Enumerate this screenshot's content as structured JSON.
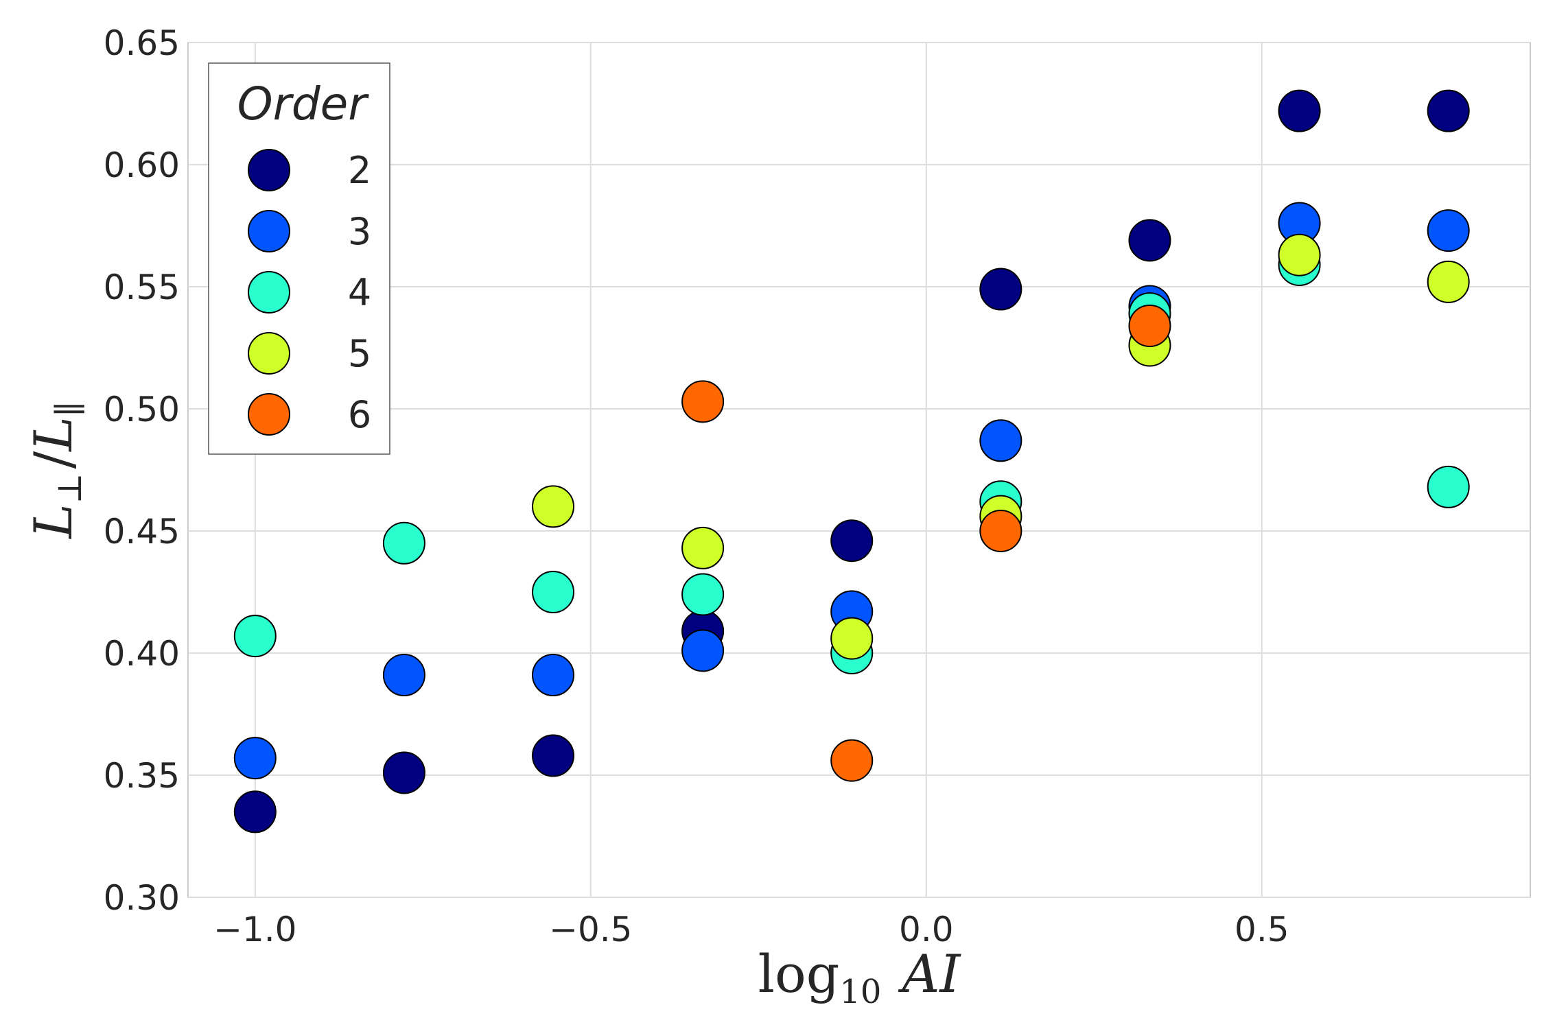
{
  "chart_data": {
    "type": "scatter",
    "xlabel": {
      "base": "log",
      "sub": "10",
      "var": "AI"
    },
    "ylabel": {
      "num": "L",
      "num_sub": "⊥",
      "sep": "/",
      "den": "L",
      "den_sub": "∥"
    },
    "xlim": [
      -1.1,
      0.9
    ],
    "ylim": [
      0.3,
      0.65
    ],
    "x_ticks": [
      -1.0,
      -0.5,
      0.0,
      0.5
    ],
    "x_tick_labels": [
      "−1.0",
      "−0.5",
      "0.0",
      "0.5"
    ],
    "y_ticks": [
      0.3,
      0.35,
      0.4,
      0.45,
      0.5,
      0.55,
      0.6,
      0.65
    ],
    "y_tick_labels": [
      "0.30",
      "0.35",
      "0.40",
      "0.45",
      "0.50",
      "0.55",
      "0.60",
      "0.65"
    ],
    "grid": true,
    "legend": {
      "title": "Order",
      "position": "top-left"
    },
    "series": [
      {
        "name": "2",
        "color": "#000080",
        "points": [
          [
            -1.0,
            0.335
          ],
          [
            -0.778,
            0.351
          ],
          [
            -0.556,
            0.358
          ],
          [
            -0.333,
            0.409
          ],
          [
            -0.111,
            0.446
          ],
          [
            0.111,
            0.549
          ],
          [
            0.333,
            0.569
          ],
          [
            0.556,
            0.622
          ],
          [
            0.778,
            0.622
          ]
        ]
      },
      {
        "name": "3",
        "color": "#0055ff",
        "points": [
          [
            -1.0,
            0.357
          ],
          [
            -0.778,
            0.391
          ],
          [
            -0.556,
            0.391
          ],
          [
            -0.333,
            0.401
          ],
          [
            -0.111,
            0.417
          ],
          [
            0.111,
            0.487
          ],
          [
            0.333,
            0.542
          ],
          [
            0.556,
            0.576
          ],
          [
            0.778,
            0.573
          ]
        ]
      },
      {
        "name": "4",
        "color": "#29ffce",
        "points": [
          [
            -1.0,
            0.407
          ],
          [
            -0.778,
            0.445
          ],
          [
            -0.556,
            0.425
          ],
          [
            -0.333,
            0.424
          ],
          [
            -0.111,
            0.4
          ],
          [
            0.111,
            0.462
          ],
          [
            0.333,
            0.539
          ],
          [
            0.556,
            0.559
          ],
          [
            0.778,
            0.468
          ]
        ]
      },
      {
        "name": "5",
        "color": "#ceff29",
        "points": [
          [
            -0.556,
            0.46
          ],
          [
            -0.333,
            0.443
          ],
          [
            -0.111,
            0.406
          ],
          [
            0.111,
            0.456
          ],
          [
            0.333,
            0.526
          ],
          [
            0.556,
            0.563
          ],
          [
            0.778,
            0.552
          ]
        ]
      },
      {
        "name": "6",
        "color": "#ff6800",
        "points": [
          [
            -0.333,
            0.503
          ],
          [
            -0.111,
            0.356
          ],
          [
            0.111,
            0.45
          ],
          [
            0.333,
            0.534
          ]
        ]
      }
    ]
  }
}
